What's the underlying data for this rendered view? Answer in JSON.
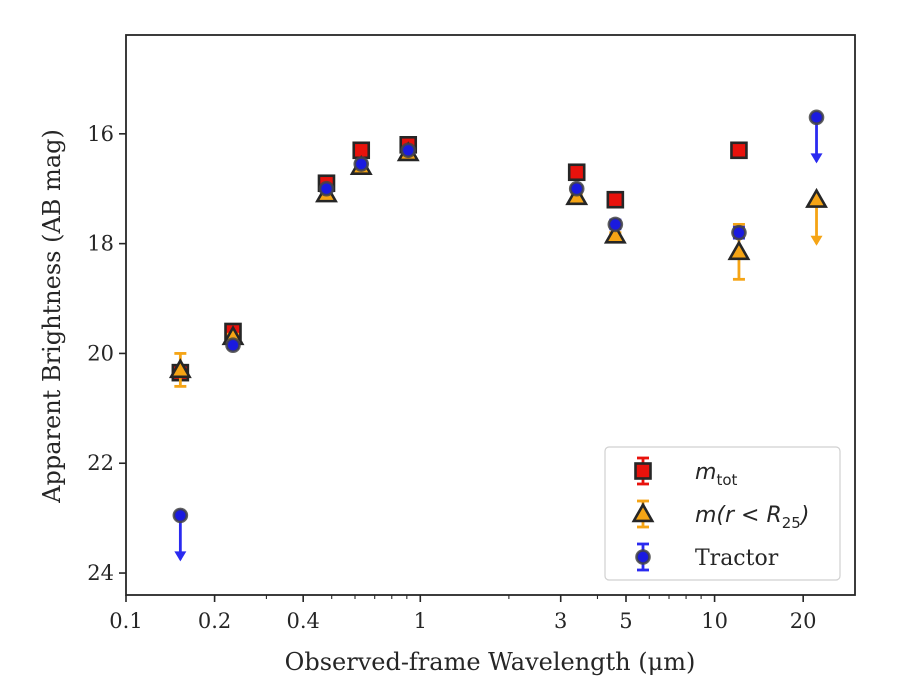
{
  "chart_data": {
    "type": "scatter",
    "xlabel": "Observed-frame Wavelength (μm)",
    "ylabel": "Apparent Brightness (AB mag)",
    "xscale": "log",
    "xlim": [
      0.1,
      30
    ],
    "ylim": [
      24.4,
      14.2
    ],
    "y_inverted": true,
    "xticks": [
      {
        "value": 0.1,
        "label": "0.1"
      },
      {
        "value": 0.2,
        "label": "0.2"
      },
      {
        "value": 0.4,
        "label": "0.4"
      },
      {
        "value": 1,
        "label": "1"
      },
      {
        "value": 3,
        "label": "3"
      },
      {
        "value": 5,
        "label": "5"
      },
      {
        "value": 10,
        "label": "10"
      },
      {
        "value": 20,
        "label": "20"
      }
    ],
    "yticks": [
      {
        "value": 16,
        "label": "16"
      },
      {
        "value": 18,
        "label": "18"
      },
      {
        "value": 20,
        "label": "20"
      },
      {
        "value": 22,
        "label": "22"
      },
      {
        "value": 24,
        "label": "24"
      }
    ],
    "legend_position": "lower-right",
    "series": [
      {
        "name": "m_tot",
        "label_main": "m",
        "label_sub": "tot",
        "label_suffix": "",
        "marker": "square",
        "color": "#e8120c",
        "errcolor": "#e8120c",
        "points": [
          {
            "x": 0.153,
            "y": 20.35,
            "err": 0.05
          },
          {
            "x": 0.231,
            "y": 19.6,
            "err": 0.05
          },
          {
            "x": 0.48,
            "y": 16.9,
            "err": 0.04
          },
          {
            "x": 0.63,
            "y": 16.3,
            "err": 0.04
          },
          {
            "x": 0.91,
            "y": 16.2,
            "err": 0.04
          },
          {
            "x": 3.4,
            "y": 16.7,
            "err": 0.04
          },
          {
            "x": 4.6,
            "y": 17.2,
            "err": 0.04
          },
          {
            "x": 12.1,
            "y": 16.3,
            "err": 0.04
          }
        ]
      },
      {
        "name": "m(r < R25)",
        "label_main": "m(r < R",
        "label_sub": "25",
        "label_suffix": ")",
        "marker": "triangle",
        "color": "#f5a415",
        "errcolor": "#f5a415",
        "points": [
          {
            "x": 0.153,
            "y": 20.3,
            "err": 0.3
          },
          {
            "x": 0.231,
            "y": 19.7,
            "err": 0.05
          },
          {
            "x": 0.48,
            "y": 17.1,
            "err": 0.05
          },
          {
            "x": 0.63,
            "y": 16.6,
            "err": 0.05
          },
          {
            "x": 0.91,
            "y": 16.35,
            "err": 0.05
          },
          {
            "x": 3.4,
            "y": 17.15,
            "err": 0.05
          },
          {
            "x": 4.6,
            "y": 17.85,
            "err": 0.05
          },
          {
            "x": 12.1,
            "y": 18.15,
            "err": 0.5
          },
          {
            "x": 22.2,
            "y": 17.2,
            "upper_limit": true
          }
        ]
      },
      {
        "name": "Tractor",
        "label_main": "Tractor",
        "label_sub": "",
        "label_suffix": "",
        "marker": "circle",
        "color": "#1a1ae0",
        "errcolor": "#2a2af0",
        "points": [
          {
            "x": 0.153,
            "y": 22.95,
            "upper_limit": true
          },
          {
            "x": 0.231,
            "y": 19.85,
            "err": 0.05
          },
          {
            "x": 0.48,
            "y": 17.0,
            "err": 0.05
          },
          {
            "x": 0.63,
            "y": 16.55,
            "err": 0.05
          },
          {
            "x": 0.91,
            "y": 16.3,
            "err": 0.05
          },
          {
            "x": 3.4,
            "y": 17.0,
            "err": 0.05
          },
          {
            "x": 4.6,
            "y": 17.65,
            "err": 0.08
          },
          {
            "x": 12.1,
            "y": 17.8,
            "err": 0.1
          },
          {
            "x": 22.2,
            "y": 15.7,
            "upper_limit": true
          }
        ]
      }
    ]
  }
}
